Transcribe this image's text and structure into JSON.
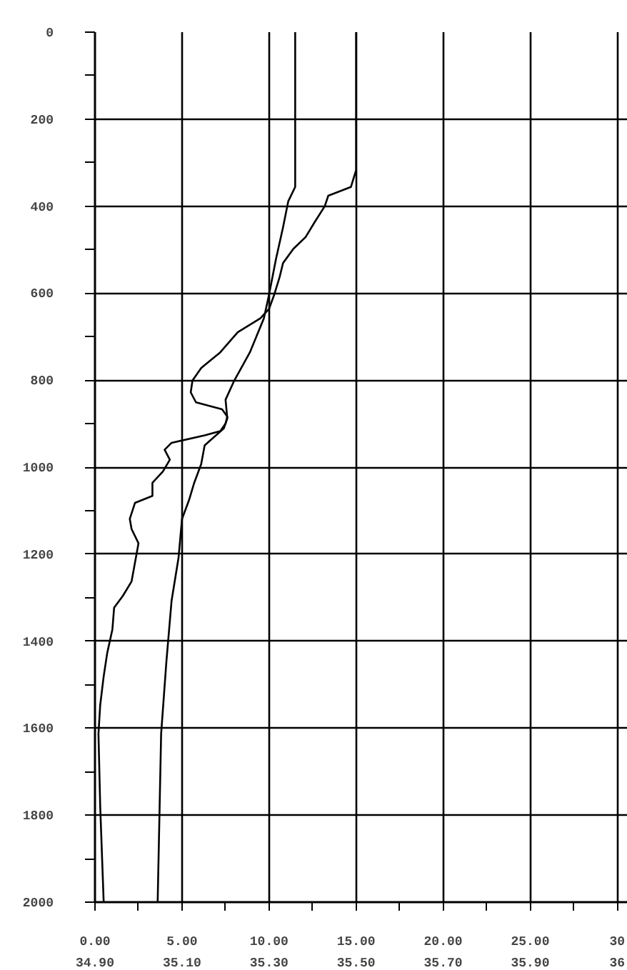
{
  "chart_data": {
    "type": "line",
    "series": [
      {
        "color": "#000000",
        "x": [
          15.0,
          15.0,
          14.7,
          13.4,
          13.2,
          12.6,
          12.1,
          11.4,
          10.8,
          10.6,
          10.3,
          10.0,
          9.5,
          8.2,
          7.2,
          6.1,
          5.6,
          5.5,
          5.8,
          7.3,
          7.6,
          7.5,
          7.2,
          6.3,
          4.4,
          4.0,
          4.3,
          3.9,
          3.3,
          3.3,
          2.3,
          2.0,
          2.1,
          2.5,
          2.1,
          1.6,
          1.1,
          1.0,
          0.7,
          0.5,
          0.3,
          0.2,
          0.3,
          0.5
        ],
        "values": [
          0,
          317,
          356,
          376,
          400,
          438,
          471,
          498,
          531,
          564,
          603,
          636,
          658,
          690,
          736,
          772,
          801,
          828,
          851,
          867,
          884,
          900,
          917,
          927,
          944,
          960,
          983,
          1010,
          1036,
          1066,
          1082,
          1119,
          1142,
          1175,
          1263,
          1296,
          1323,
          1373,
          1428,
          1481,
          1547,
          1613,
          1779,
          2000
        ]
      },
      {
        "color": "#000000",
        "x": [
          11.5,
          11.5,
          11.1,
          10.8,
          10.4,
          10.0,
          9.7,
          8.9,
          8.0,
          7.5,
          7.6,
          7.4,
          6.3,
          6.1,
          5.7,
          5.4,
          5.0,
          4.8,
          4.4,
          4.1,
          3.8,
          3.6
        ],
        "values": [
          0,
          356,
          389,
          449,
          521,
          603,
          658,
          736,
          801,
          845,
          888,
          911,
          950,
          993,
          1036,
          1076,
          1119,
          1208,
          1307,
          1448,
          1613,
          2000
        ]
      }
    ],
    "xlim": [
      0,
      30.6
    ],
    "xticks": [
      {
        "value": 0,
        "label": "0.00"
      },
      {
        "value": 2.5,
        "label": null
      },
      {
        "value": 5,
        "label": "5.00"
      },
      {
        "value": 7.5,
        "label": null
      },
      {
        "value": 10,
        "label": "10.00"
      },
      {
        "value": 12.5,
        "label": null
      },
      {
        "value": 15,
        "label": "15.00"
      },
      {
        "value": 17.5,
        "label": null
      },
      {
        "value": 20,
        "label": "20.00"
      },
      {
        "value": 22.5,
        "label": null
      },
      {
        "value": 25,
        "label": "25.00"
      },
      {
        "value": 27.5,
        "label": null
      },
      {
        "value": 30,
        "label": "30"
      }
    ],
    "x2lim": [
      34.9,
      36.124
    ],
    "x2ticks": [
      {
        "value": 34.9,
        "label": "34.90"
      },
      {
        "value": 35.1,
        "label": "35.10"
      },
      {
        "value": 35.3,
        "label": "35.30"
      },
      {
        "value": 35.5,
        "label": "35.50"
      },
      {
        "value": 35.7,
        "label": "35.70"
      },
      {
        "value": 35.9,
        "label": "35.90"
      },
      {
        "value": 36.1,
        "label": "36"
      }
    ],
    "ylim": [
      2000,
      0
    ],
    "yticks": [
      0,
      {
        "value": 100,
        "label": null
      },
      200,
      {
        "value": 300,
        "label": null
      },
      400,
      {
        "value": 500,
        "label": null
      },
      600,
      {
        "value": 700,
        "label": null
      },
      800,
      {
        "value": 900,
        "label": null
      },
      1000,
      {
        "value": 1100,
        "label": null
      },
      1200,
      {
        "value": 1300,
        "label": null
      },
      1400,
      {
        "value": 1500,
        "label": null
      },
      1600,
      {
        "value": 1700,
        "label": null
      },
      1800,
      {
        "value": 1900,
        "label": null
      },
      2000
    ],
    "grid": true,
    "marker": "none",
    "line_style": "solid"
  }
}
